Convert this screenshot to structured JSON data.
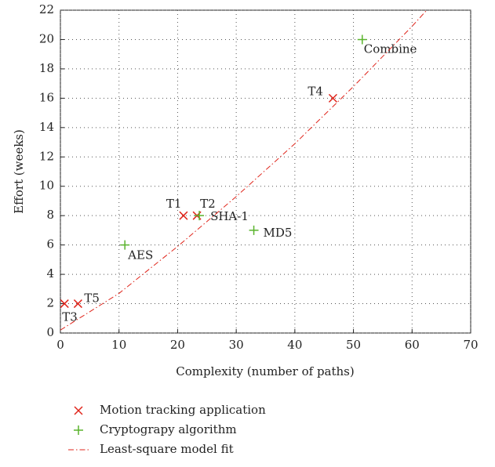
{
  "chart_data": {
    "type": "scatter",
    "xlabel": "Complexity (number of paths)",
    "ylabel": "Effort (weeks)",
    "xlim": [
      0,
      70
    ],
    "xticks": [
      0,
      10,
      20,
      30,
      40,
      50,
      60,
      70
    ],
    "ylim": [
      0,
      22
    ],
    "yticks": [
      0,
      2,
      4,
      6,
      8,
      10,
      12,
      14,
      16,
      18,
      20,
      22
    ],
    "grid": true,
    "legend": "bottom",
    "series": [
      {
        "name": "Motion tracking application",
        "color": "#e0251b",
        "marker": "x",
        "labels": [
          "T1",
          "T2",
          "T3",
          "T4",
          "T5"
        ],
        "x": [
          21,
          23.3,
          0.7,
          46.5,
          3
        ],
        "values": [
          8,
          8,
          2,
          16,
          2
        ]
      },
      {
        "name": "Cryptograpy algorithm",
        "color": "#5ab42d",
        "marker": "+",
        "labels": [
          "AES",
          "SHA-1",
          "MD5",
          "Combine"
        ],
        "x": [
          11,
          23.7,
          33,
          51.5
        ],
        "values": [
          6,
          8,
          7,
          20
        ]
      },
      {
        "name": "Least-square model fit",
        "color": "#e0251b",
        "line": "dashdot",
        "x": [
          0,
          10,
          20,
          30,
          40,
          50,
          60,
          62.5
        ],
        "values": [
          0.2,
          2.7,
          5.9,
          9.3,
          12.9,
          16.8,
          20.9,
          22
        ]
      }
    ]
  }
}
